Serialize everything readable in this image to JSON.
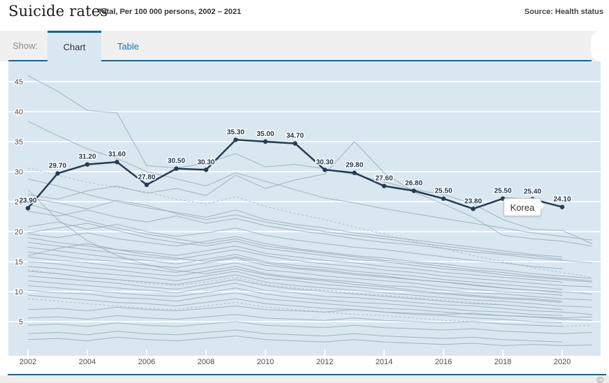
{
  "theme": {
    "accent": "#16648f",
    "link": "#1a78a4",
    "plot_bg": "#d9e7f1",
    "grid": "#ffffff",
    "background_line": "#94a6b4",
    "background_line_dashed": "#9db0bc",
    "korea_line": "#263c52",
    "label_color": "#22384a",
    "axis_label_color": "#4d4d4d"
  },
  "header": {
    "title": "Suicide rates",
    "subtitle": "Total, Per 100 000 persons, 2002 – 2021",
    "source": "Source: Health status"
  },
  "tabs": {
    "show_label": "Show:",
    "chart_label": "Chart",
    "table_label": "Table"
  },
  "tooltip": {
    "label": "Korea"
  },
  "footer": {
    "copyright": "©"
  },
  "chart_data": {
    "type": "line",
    "title": "Suicide rates",
    "subtitle": "Total, Per 100 000 persons, 2002 - 2021",
    "xlabel": "",
    "ylabel": "",
    "x_start": 2002,
    "x_end": 2021,
    "ylim": [
      0,
      48
    ],
    "y_ticks": [
      5,
      10,
      15,
      20,
      25,
      30,
      35,
      40,
      45
    ],
    "x_ticks": [
      2002,
      2004,
      2006,
      2008,
      2010,
      2012,
      2014,
      2016,
      2018,
      2020
    ],
    "grid": "horizontal-white",
    "legend": "tooltip-on-highlighted-series",
    "highlight_series": {
      "name": "Korea",
      "x_start": 2002,
      "values": [
        23.9,
        29.7,
        31.2,
        31.6,
        27.8,
        30.5,
        30.3,
        35.3,
        35.0,
        34.7,
        30.3,
        29.8,
        27.6,
        26.8,
        25.5,
        23.8,
        25.5,
        25.4,
        24.1
      ],
      "labels": [
        "23.90",
        "29.70",
        "31.20",
        "31.60",
        "27.80",
        "30.50",
        "30.30",
        "35.30",
        "35.00",
        "34.70",
        "30.30",
        "29.80",
        "27.60",
        "26.80",
        "25.50",
        "23.80",
        "25.50",
        "25.40",
        "24.10"
      ],
      "tooltip_year": 2019
    },
    "background_series": [
      {
        "values": [
          46.0,
          43.4,
          40.2,
          39.8,
          31.0,
          30.6,
          31.4,
          33.0,
          30.8,
          31.2,
          30.5,
          29.5,
          28.3,
          27.0,
          26.2,
          24.6,
          22.0,
          20.4,
          20.2,
          18.0
        ]
      },
      {
        "values": [
          38.4,
          36.0,
          33.8,
          32.2,
          30.0,
          28.8,
          27.6,
          29.8,
          28.4,
          27.0,
          25.6,
          24.8,
          23.8,
          23.0,
          22.2,
          21.4,
          20.6,
          19.8,
          19.2,
          18.6
        ]
      },
      {
        "values": [
          26.2,
          25.4,
          26.8,
          27.6,
          26.4,
          27.2,
          26.0,
          29.4,
          27.2,
          28.6,
          29.6,
          35.0,
          29.8,
          26.6,
          24.6,
          22.4,
          19.4,
          18.8,
          18.4,
          17.6
        ]
      },
      {
        "values": [
          28.8,
          27.6,
          26.2,
          25.0,
          24.0,
          23.2,
          22.4,
          23.6,
          22.0,
          21.2,
          20.6,
          19.8,
          19.2,
          18.6,
          18.0,
          17.4,
          16.8,
          16.2,
          15.8
        ]
      },
      {
        "values": [
          25.6,
          24.8,
          23.8,
          25.2,
          24.4,
          23.0,
          22.0,
          22.8,
          21.6,
          20.8,
          20.0,
          19.4,
          18.8,
          18.2,
          17.6,
          17.0,
          16.4,
          16.0,
          15.4
        ]
      },
      {
        "values": [
          23.4,
          22.6,
          23.6,
          22.4,
          21.6,
          22.6,
          21.4,
          22.2,
          21.0,
          20.2,
          19.6,
          18.8,
          18.2,
          17.8,
          17.2,
          16.6,
          16.2,
          15.6,
          15.2,
          14.8
        ]
      },
      {
        "values": [
          20.8,
          21.6,
          20.4,
          21.2,
          20.0,
          19.2,
          19.8,
          20.6,
          19.4,
          18.6,
          18.0,
          17.4,
          17.0,
          16.4,
          15.8,
          15.2,
          14.8,
          14.2,
          13.8
        ]
      },
      {
        "values": [
          19.6,
          19.0,
          19.8,
          18.8,
          18.2,
          17.6,
          18.4,
          19.2,
          18.0,
          17.2,
          16.6,
          16.0,
          15.6,
          15.0,
          14.6,
          14.0,
          13.6,
          13.0,
          12.6,
          12.2
        ]
      },
      {
        "values": [
          19.0,
          18.2,
          17.6,
          17.0,
          16.6,
          16.0,
          16.8,
          17.6,
          16.4,
          15.8,
          15.2,
          14.8,
          14.2,
          13.8,
          13.2,
          12.8,
          12.4,
          12.0,
          11.6
        ]
      },
      {
        "values": [
          18.2,
          17.6,
          17.0,
          16.4,
          15.8,
          15.4,
          16.2,
          17.0,
          16.0,
          15.2,
          14.6,
          14.2,
          13.6,
          13.2,
          12.6,
          12.2,
          11.8,
          11.4,
          11.0,
          10.8
        ]
      },
      {
        "values": [
          17.4,
          16.8,
          16.2,
          15.6,
          15.2,
          14.6,
          15.4,
          16.2,
          15.0,
          14.4,
          14.0,
          13.4,
          13.0,
          12.6,
          12.0,
          11.6,
          11.2,
          10.8,
          10.4
        ]
      },
      {
        "values": [
          16.6,
          16.0,
          15.4,
          15.0,
          14.4,
          14.0,
          14.8,
          15.6,
          14.4,
          13.8,
          13.4,
          12.8,
          12.4,
          12.0,
          11.6,
          11.0,
          10.6,
          10.2,
          10.0,
          9.6
        ]
      },
      {
        "values": [
          15.8,
          15.2,
          14.8,
          14.2,
          13.8,
          13.2,
          14.0,
          14.8,
          13.6,
          13.2,
          12.6,
          12.2,
          11.8,
          11.4,
          10.8,
          10.4,
          10.0,
          9.8,
          9.4
        ]
      },
      {
        "values": [
          15.0,
          14.6,
          14.0,
          13.6,
          13.0,
          12.6,
          13.4,
          14.2,
          13.0,
          12.4,
          12.0,
          11.6,
          11.0,
          10.8,
          10.2,
          9.8,
          9.6,
          9.2,
          8.8,
          8.6
        ]
      },
      {
        "values": [
          14.2,
          13.8,
          13.2,
          12.8,
          12.4,
          11.8,
          12.6,
          13.4,
          12.2,
          11.8,
          11.2,
          10.8,
          10.4,
          10.0,
          9.6,
          9.2,
          8.8,
          8.6,
          8.2
        ]
      },
      {
        "values": [
          13.4,
          13.0,
          12.4,
          12.0,
          11.6,
          11.2,
          12.0,
          12.8,
          11.6,
          11.0,
          10.6,
          10.2,
          9.8,
          9.4,
          9.0,
          8.6,
          8.4,
          8.0,
          7.6,
          7.4
        ]
      },
      {
        "values": [
          12.6,
          12.2,
          11.8,
          11.4,
          10.8,
          10.4,
          11.2,
          12.0,
          11.0,
          10.4,
          10.0,
          9.6,
          9.2,
          8.8,
          8.4,
          8.0,
          7.8,
          7.4,
          7.0
        ]
      },
      {
        "values": [
          11.8,
          11.4,
          11.0,
          10.6,
          10.2,
          9.8,
          10.6,
          11.4,
          10.2,
          9.8,
          9.2,
          9.0,
          8.6,
          8.2,
          7.8,
          7.6,
          7.2,
          6.8,
          6.6,
          6.2
        ]
      },
      {
        "values": [
          11.0,
          10.6,
          10.2,
          9.8,
          9.4,
          9.2,
          9.8,
          10.6,
          9.6,
          9.0,
          8.6,
          8.2,
          8.0,
          7.6,
          7.2,
          6.8,
          6.6,
          6.2,
          6.0
        ]
      },
      {
        "values": [
          10.2,
          9.8,
          9.6,
          9.0,
          8.8,
          8.4,
          9.2,
          9.8,
          8.8,
          8.4,
          8.0,
          7.6,
          7.2,
          7.0,
          6.6,
          6.2,
          6.0,
          5.8,
          5.4,
          5.2
        ]
      },
      {
        "values": [
          7.0,
          7.2,
          6.8,
          7.4,
          7.0,
          6.8,
          7.2,
          7.6,
          7.0,
          6.8,
          6.6,
          7.0,
          6.6,
          6.4,
          6.2,
          6.4,
          6.0,
          5.8,
          5.6,
          5.8
        ]
      },
      {
        "values": [
          5.6,
          5.8,
          5.4,
          6.0,
          5.6,
          5.4,
          5.8,
          6.2,
          5.6,
          5.4,
          5.2,
          5.6,
          5.2,
          5.0,
          4.8,
          5.0,
          4.6,
          4.4,
          4.2
        ]
      },
      {
        "values": [
          4.4,
          4.6,
          4.2,
          4.8,
          4.4,
          4.2,
          4.6,
          5.0,
          4.4,
          4.2,
          4.0,
          4.4,
          4.0,
          3.8,
          3.6,
          3.8,
          3.4,
          3.2,
          3.0,
          3.2
        ]
      },
      {
        "values": [
          3.0,
          3.2,
          2.8,
          3.4,
          3.0,
          2.8,
          3.2,
          3.6,
          3.0,
          2.8,
          2.6,
          3.0,
          2.6,
          2.4,
          2.2,
          2.4,
          2.0,
          1.8,
          1.6
        ]
      },
      {
        "values": [
          2.0,
          2.2,
          1.8,
          2.4,
          2.0,
          1.8,
          2.2,
          2.6,
          2.0,
          1.8,
          1.6,
          2.0,
          1.6,
          1.4,
          1.2,
          1.4,
          1.0,
          1.2,
          1.0,
          1.1
        ]
      },
      {
        "values": [
          27.0,
          22.0,
          18.5,
          16.0,
          14.5,
          13.5,
          13.0,
          13.8,
          12.8,
          12.2,
          11.8,
          11.2,
          10.8,
          10.2,
          9.8,
          9.4,
          9.0,
          8.8,
          8.4
        ]
      },
      {
        "values": [
          19.8,
          20.6,
          21.4,
          20.2,
          19.0,
          18.2,
          17.6,
          18.4,
          17.2,
          16.6,
          16.0,
          15.4,
          15.0,
          14.4,
          13.8,
          13.4,
          12.8,
          12.4,
          12.0,
          11.6
        ]
      },
      {
        "values": [
          16.0,
          17.2,
          18.0,
          17.0,
          16.2,
          15.6,
          15.0,
          15.8,
          14.8,
          14.0,
          13.6,
          13.0,
          12.6,
          12.0,
          11.6,
          11.2,
          10.6,
          10.2,
          9.8
        ]
      },
      {
        "values": [
          24.6,
          23.2,
          21.8,
          20.6,
          19.6,
          18.8,
          18.0,
          18.8,
          17.6,
          17.0,
          16.4,
          15.8,
          15.2,
          14.8,
          14.2,
          13.6,
          13.2,
          12.6,
          12.2,
          11.8
        ]
      },
      {
        "values": [
          9.4,
          9.0,
          8.6,
          8.2,
          8.0,
          7.6,
          8.2,
          8.8,
          8.0,
          7.6,
          7.2,
          7.0,
          6.6,
          6.2,
          6.0,
          5.6,
          5.4,
          5.0,
          4.8
        ]
      },
      {
        "values": [
          30.6,
          29.4,
          28.2,
          27.4,
          26.6,
          25.4,
          24.6,
          25.8,
          24.2,
          23.0,
          22.0,
          20.8,
          19.6,
          18.4,
          17.2,
          16.0,
          15.0,
          14.0,
          13.2,
          12.4
        ],
        "dashed": true
      },
      {
        "values": [
          13.6,
          13.0,
          12.4,
          12.0,
          11.4,
          11.0,
          11.6,
          12.4,
          11.2,
          10.6,
          10.2,
          9.8,
          9.4,
          9.0,
          8.6,
          8.2,
          7.8,
          7.4,
          7.0
        ],
        "dashed": true
      },
      {
        "values": [
          8.8,
          8.4,
          8.0,
          7.6,
          7.2,
          7.0,
          7.6,
          8.2,
          7.4,
          7.0,
          6.6,
          6.2,
          6.0,
          5.6,
          5.2,
          5.0,
          4.6,
          4.4,
          4.2,
          4.4
        ],
        "dashed": true
      }
    ]
  }
}
